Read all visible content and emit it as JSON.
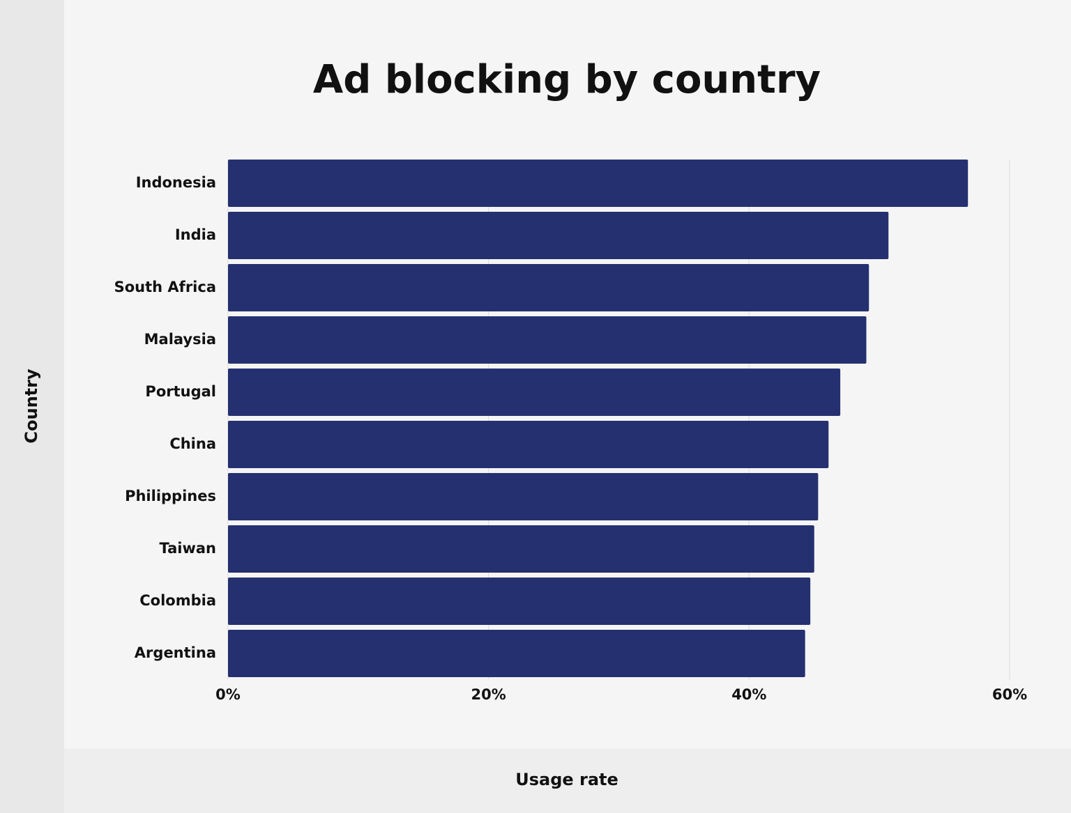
{
  "chart_data": {
    "type": "bar",
    "orientation": "horizontal",
    "title": "Ad blocking by country",
    "x_label": "Usage rate",
    "y_label": "Country",
    "categories": [
      "Indonesia",
      "India",
      "South Africa",
      "Malaysia",
      "Portugal",
      "China",
      "Philippines",
      "Taiwan",
      "Colombia",
      "Argentina"
    ],
    "values": [
      56.8,
      50.7,
      49.2,
      49.0,
      47.0,
      46.1,
      45.3,
      45.0,
      44.7,
      44.3
    ],
    "color": "#253070",
    "xlim": [
      0,
      60
    ],
    "xticks": [
      {
        "value": 0,
        "label": "0%"
      },
      {
        "value": 20,
        "label": "20%"
      },
      {
        "value": 40,
        "label": "40%"
      },
      {
        "value": 60,
        "label": "60%"
      }
    ],
    "grid": true
  }
}
